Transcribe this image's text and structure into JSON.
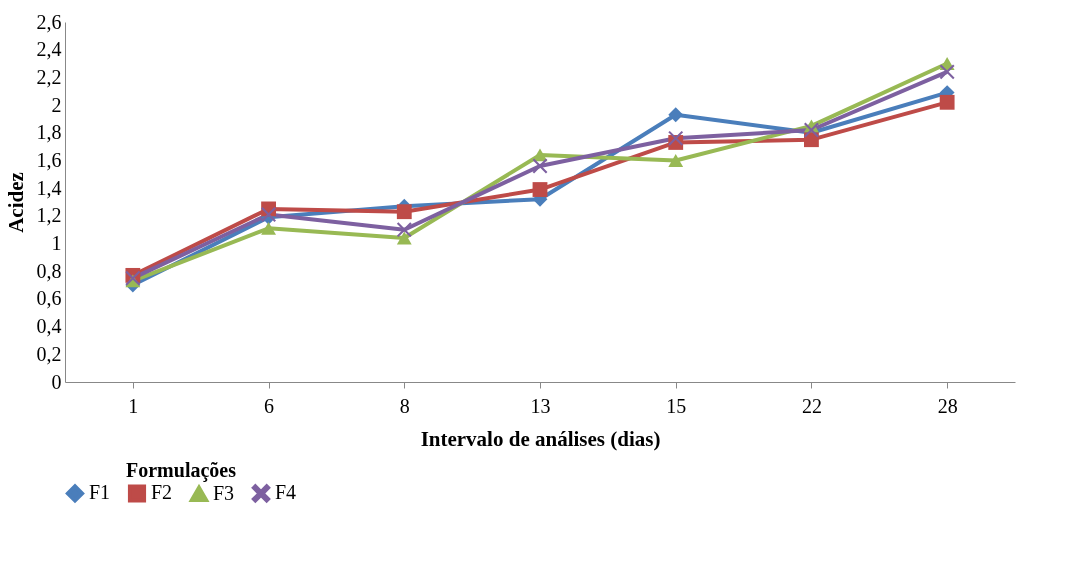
{
  "chart_data": {
    "type": "line",
    "xlabel": "Intervalo de análises (dias)",
    "ylabel": "Acidez",
    "legend_title": "Formulações",
    "categories": [
      "1",
      "6",
      "8",
      "13",
      "15",
      "22",
      "28"
    ],
    "series": [
      {
        "name": "F1",
        "color": "#4a7ebb",
        "marker": "diamond",
        "values": [
          0.7,
          1.19,
          1.27,
          1.32,
          1.93,
          1.8,
          2.09
        ]
      },
      {
        "name": "F2",
        "color": "#be4b48",
        "marker": "square",
        "values": [
          0.77,
          1.25,
          1.23,
          1.39,
          1.73,
          1.75,
          2.02
        ]
      },
      {
        "name": "F3",
        "color": "#98b954",
        "marker": "triangle",
        "values": [
          0.73,
          1.11,
          1.04,
          1.64,
          1.6,
          1.85,
          2.3
        ]
      },
      {
        "name": "F4",
        "color": "#7d60a0",
        "marker": "cross",
        "values": [
          0.75,
          1.21,
          1.1,
          1.56,
          1.76,
          1.82,
          2.24
        ]
      }
    ],
    "ylim": [
      0,
      2.6
    ],
    "yticks": [
      0,
      {
        "value": 0.2,
        "label": "0,2"
      },
      {
        "value": 0.4,
        "label": "0,4"
      },
      {
        "value": 0.6,
        "label": "0,6"
      },
      {
        "value": 0.8,
        "label": "0,8"
      },
      1,
      {
        "value": 1.2,
        "label": "1,2"
      },
      {
        "value": 1.4,
        "label": "1,4"
      },
      {
        "value": 1.6,
        "label": "1,6"
      },
      {
        "value": 1.8,
        "label": "1,8"
      },
      2,
      {
        "value": 2.2,
        "label": "2,2"
      },
      {
        "value": 2.4,
        "label": "2,4"
      },
      {
        "value": 2.6,
        "label": "2,6"
      }
    ],
    "grid": false,
    "legend": "bottom",
    "line_style": "solid"
  }
}
